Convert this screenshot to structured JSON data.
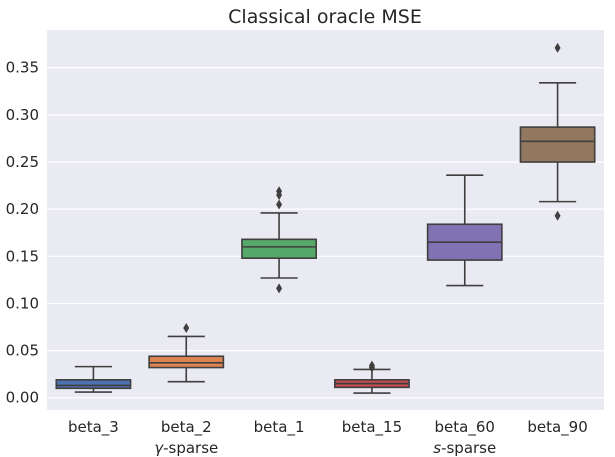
{
  "chart_data": {
    "type": "box",
    "title": "Classical oracle MSE",
    "xlabel": "",
    "ylabel": "",
    "ylim": [
      -0.013,
      0.39
    ],
    "yticks": [
      0.0,
      0.05,
      0.1,
      0.15,
      0.2,
      0.25,
      0.3,
      0.35
    ],
    "ytick_labels": [
      "0.00",
      "0.05",
      "0.10",
      "0.15",
      "0.20",
      "0.25",
      "0.30",
      "0.35"
    ],
    "group_labels": [
      {
        "text": "γ-sparse",
        "italic_prefix": "γ",
        "rest": "-sparse",
        "under": "beta_2"
      },
      {
        "text": "s-sparse",
        "italic_prefix": "s",
        "rest": "-sparse",
        "under": "beta_60"
      }
    ],
    "series": [
      {
        "name": "beta_3",
        "color": "#4c72b0",
        "q1": 0.01,
        "median": 0.013,
        "q3": 0.019,
        "whisker_low": 0.006,
        "whisker_high": 0.033,
        "fliers": []
      },
      {
        "name": "beta_2",
        "color": "#dd8452",
        "q1": 0.032,
        "median": 0.037,
        "q3": 0.044,
        "whisker_low": 0.017,
        "whisker_high": 0.065,
        "fliers": [
          0.074
        ]
      },
      {
        "name": "beta_1",
        "color": "#55a868",
        "q1": 0.148,
        "median": 0.16,
        "q3": 0.168,
        "whisker_low": 0.127,
        "whisker_high": 0.196,
        "fliers": [
          0.116,
          0.205,
          0.215,
          0.219
        ]
      },
      {
        "name": "beta_15",
        "color": "#c44e52",
        "q1": 0.011,
        "median": 0.015,
        "q3": 0.019,
        "whisker_low": 0.005,
        "whisker_high": 0.03,
        "fliers": [
          0.032,
          0.034
        ]
      },
      {
        "name": "beta_60",
        "color": "#8172b3",
        "q1": 0.146,
        "median": 0.165,
        "q3": 0.184,
        "whisker_low": 0.119,
        "whisker_high": 0.236,
        "fliers": []
      },
      {
        "name": "beta_90",
        "color": "#937860",
        "q1": 0.25,
        "median": 0.272,
        "q3": 0.287,
        "whisker_low": 0.208,
        "whisker_high": 0.334,
        "fliers": [
          0.193,
          0.371
        ]
      }
    ]
  },
  "colors": {
    "plot_background": "#eaeaf2",
    "grid": "#ffffff",
    "line": "#3f3f3f"
  }
}
